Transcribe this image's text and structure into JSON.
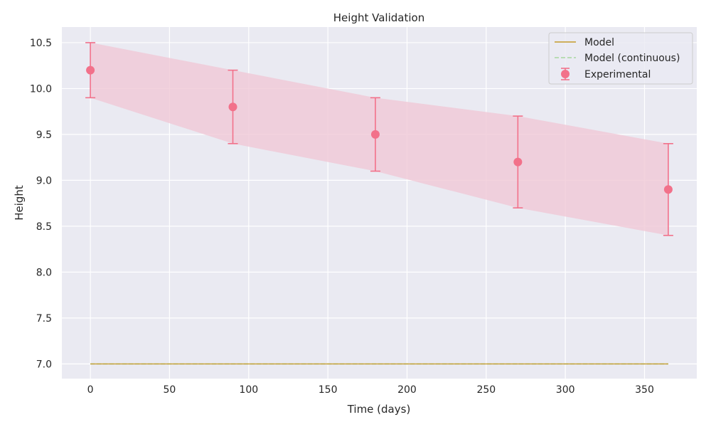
{
  "chart_data": {
    "type": "line",
    "title": "Height Validation",
    "xlabel": "Time (days)",
    "ylabel": "Height",
    "xlim": [
      -18,
      383
    ],
    "ylim": [
      6.84,
      10.67
    ],
    "xticks": [
      0,
      50,
      100,
      150,
      200,
      250,
      300,
      350
    ],
    "yticks": [
      7.0,
      7.5,
      8.0,
      8.5,
      9.0,
      9.5,
      10.0,
      10.5
    ],
    "grid": true,
    "legend_position": "top-right",
    "model": {
      "name": "Model",
      "color": "#c49a2a",
      "x": [
        0,
        365
      ],
      "y": [
        7.0,
        7.0
      ]
    },
    "model_continuous": {
      "name": "Model (continuous)",
      "color": "#a8d8a0",
      "x": [
        0,
        365
      ],
      "y": [
        7.0,
        7.0
      ]
    },
    "experimental": {
      "name": "Experimental",
      "color": "#f2718a",
      "band_color": "#f0c8d6",
      "x": [
        0,
        90,
        180,
        270,
        365
      ],
      "y": [
        10.2,
        9.8,
        9.5,
        9.2,
        8.9
      ],
      "y_lower": [
        9.9,
        9.4,
        9.1,
        8.7,
        8.4
      ],
      "y_upper": [
        10.5,
        10.2,
        9.9,
        9.7,
        9.4
      ]
    }
  }
}
